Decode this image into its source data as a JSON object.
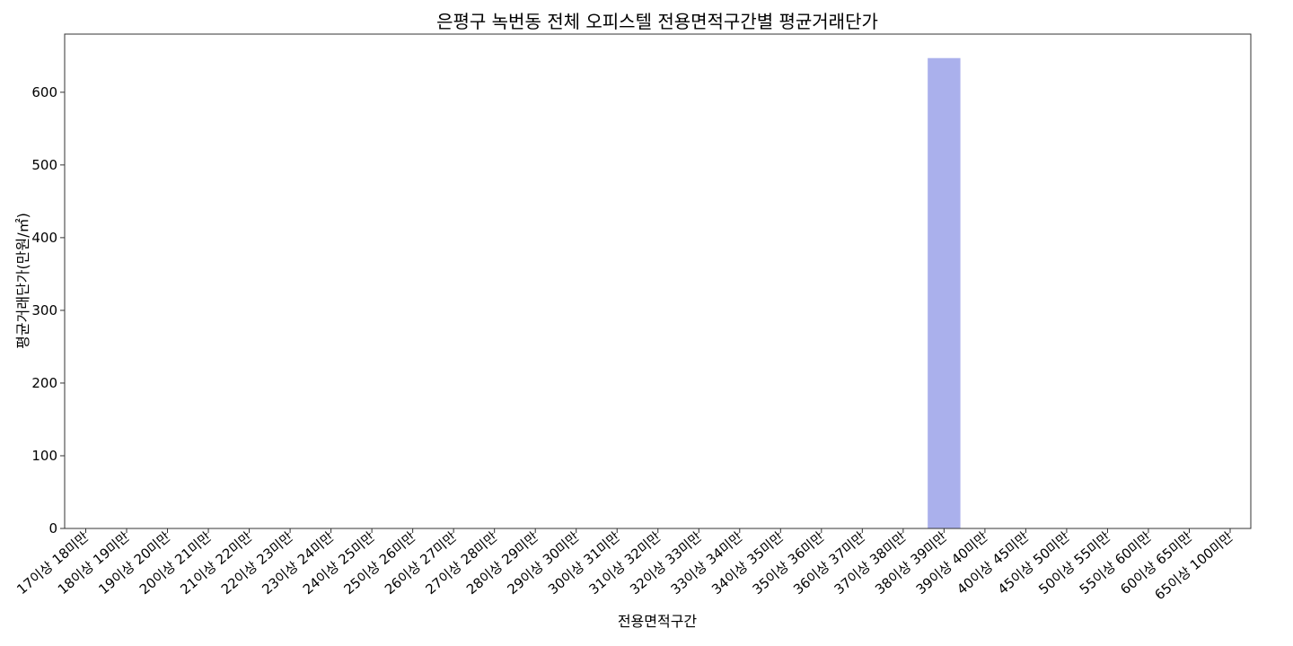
{
  "chart_data": {
    "type": "bar",
    "title": "은평구 녹번동 전체 오피스텔 전용면적구간별 평균거래단가",
    "xlabel": "전용면적구간",
    "ylabel": "평균거래단가(만원/㎡)",
    "categories": [
      "17이상 18미만",
      "18이상 19미만",
      "19이상 20미만",
      "20이상 21미만",
      "21이상 22미만",
      "22이상 23미만",
      "23이상 24미만",
      "24이상 25미만",
      "25이상 26미만",
      "26이상 27미만",
      "27이상 28미만",
      "28이상 29미만",
      "29이상 30미만",
      "30이상 31미만",
      "31이상 32미만",
      "32이상 33미만",
      "33이상 34미만",
      "34이상 35미만",
      "35이상 36미만",
      "36이상 37미만",
      "37이상 38미만",
      "38이상 39미만",
      "39이상 40미만",
      "40이상 45미만",
      "45이상 50미만",
      "50이상 55미만",
      "55이상 60미만",
      "60이상 65미만",
      "65이상 100미만"
    ],
    "values": [
      0,
      0,
      0,
      0,
      0,
      0,
      0,
      0,
      0,
      0,
      0,
      0,
      0,
      0,
      0,
      0,
      0,
      0,
      0,
      0,
      0,
      647,
      0,
      0,
      0,
      0,
      0,
      0,
      0
    ],
    "ylim": [
      0,
      680
    ],
    "yticks": [
      0,
      100,
      200,
      300,
      400,
      500,
      600
    ],
    "grid": false,
    "legend": "none",
    "bar_color": "#aab0ec"
  }
}
